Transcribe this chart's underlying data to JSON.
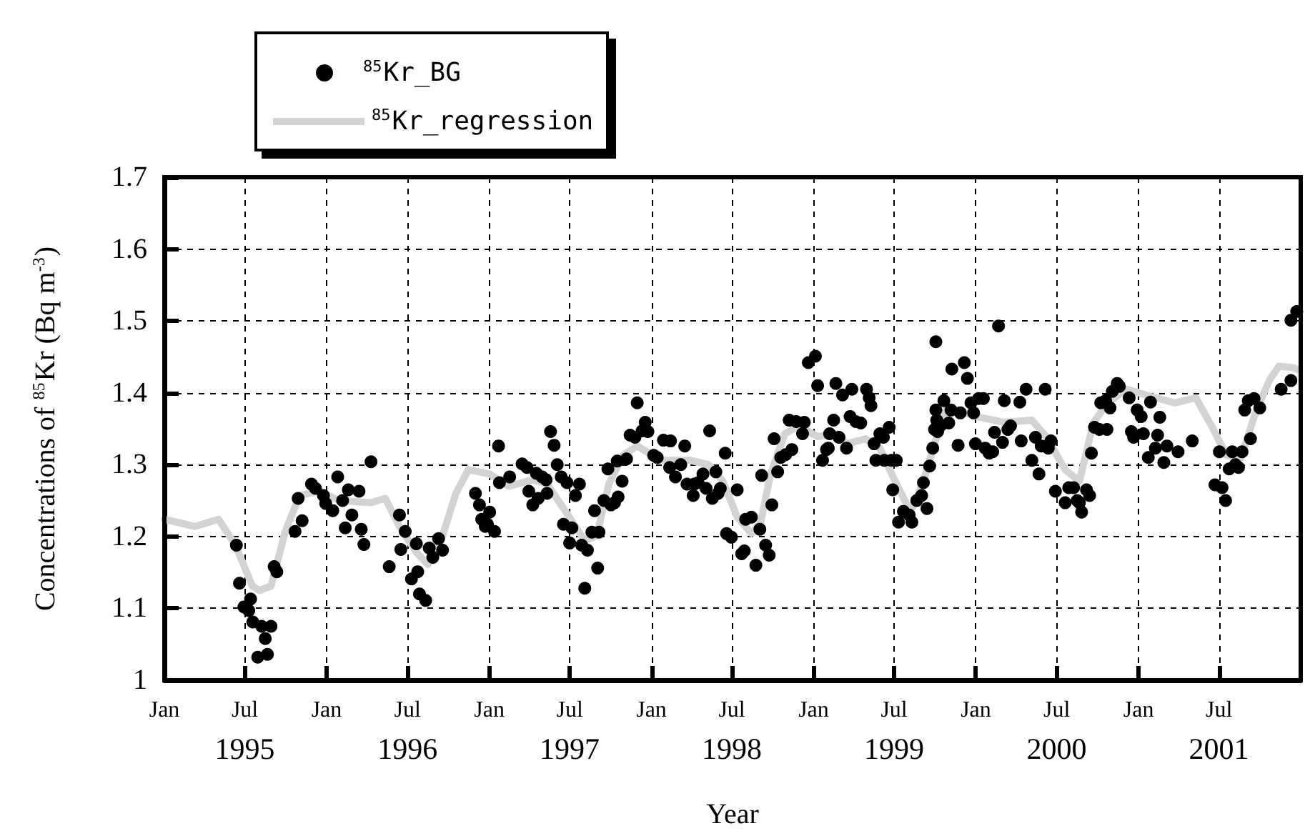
{
  "chart_data": {
    "type": "scatter",
    "xlabel": "Year",
    "ylabel": "Concentrations of $^{85}$Kr (Bq m$^{-3}$)",
    "xlim": [
      "1995-01-01",
      "2002-01-01"
    ],
    "xticks": [
      {
        "value": "1995-01-01",
        "label": "Jan"
      },
      {
        "value": "1995-07-01",
        "label": "Jul\n1995"
      },
      {
        "value": "1996-01-01",
        "label": "Jan"
      },
      {
        "value": "1996-07-01",
        "label": "Jul\n1996"
      },
      {
        "value": "1997-01-01",
        "label": "Jan"
      },
      {
        "value": "1997-07-01",
        "label": "Jul\n1997"
      },
      {
        "value": "1998-01-01",
        "label": "Jan"
      },
      {
        "value": "1998-07-01",
        "label": "Jul\n1998"
      },
      {
        "value": "1999-01-01",
        "label": "Jan"
      },
      {
        "value": "1999-07-01",
        "label": "Jul\n1999"
      },
      {
        "value": "2000-01-01",
        "label": "Jan"
      },
      {
        "value": "2000-07-01",
        "label": "Jul\n2000"
      },
      {
        "value": "2001-01-01",
        "label": "Jan"
      },
      {
        "value": "2001-07-01",
        "label": "Jul\n2001"
      }
    ],
    "ylim": [
      1,
      1.7
    ],
    "yticks": [
      1,
      1.1,
      1.2,
      1.3,
      1.4,
      1.5,
      1.6,
      1.7
    ],
    "grid": true,
    "legend": "top left",
    "series": [
      {
        "name": "$^{85}$Kr_BG",
        "marker": "circle",
        "color": "#000000",
        "x": [
          "1995-06-12",
          "1995-06-19",
          "1995-06-29",
          "1995-07-10",
          "1995-07-14",
          "1995-07-19",
          "1995-08-08",
          "1995-08-29",
          "1995-08-16",
          "1995-07-30",
          "1995-08-21",
          "1995-09-05",
          "1995-09-11",
          "1995-10-22",
          "1995-11-07",
          "1995-10-29",
          "1995-11-28",
          "1995-12-07",
          "1995-12-25",
          "1995-12-30",
          "1996-01-15",
          "1996-01-26",
          "1996-02-06",
          "1996-02-19",
          "1996-03-14",
          "1996-02-27",
          "1996-02-12",
          "1996-03-19",
          "1996-03-25",
          "1996-04-10",
          "1996-06-13",
          "1996-06-26",
          "1996-06-16",
          "1996-05-21",
          "1996-07-21",
          "1996-07-10",
          "1996-07-24",
          "1996-07-28",
          "1996-08-11",
          "1996-08-19",
          "1996-08-27",
          "1996-09-09",
          "1996-09-18",
          "1996-12-01",
          "1996-12-10",
          "1996-12-15",
          "1996-12-23",
          "1997-01-02",
          "1996-12-28",
          "1997-01-13",
          "1997-01-24",
          "1997-01-22",
          "1997-02-16",
          "1997-03-16",
          "1997-03-27",
          "1997-03-31",
          "1997-04-09",
          "1997-04-17",
          "1997-04-21",
          "1997-04-30",
          "1997-05-09",
          "1997-05-11",
          "1997-05-19",
          "1997-05-27",
          "1997-06-03",
          "1997-06-12",
          "1997-06-25",
          "1997-07-14",
          "1997-07-23",
          "1997-06-17",
          "1997-07-06",
          "1997-07-01",
          "1997-07-28",
          "1997-08-10",
          "1997-08-04",
          "1997-09-02",
          "1997-08-20",
          "1997-08-26",
          "1997-09-05",
          "1997-09-16",
          "1997-09-25",
          "1997-10-02",
          "1997-10-10",
          "1997-10-18",
          "1997-10-16",
          "1997-10-27",
          "1997-11-06",
          "1997-11-14",
          "1997-11-25",
          "1997-11-30",
          "1997-12-11",
          "1997-12-18",
          "1997-12-24",
          "1998-01-06",
          "1998-01-14",
          "1998-01-28",
          "1998-02-13",
          "1998-02-11",
          "1998-02-24",
          "1998-03-08",
          "1998-03-17",
          "1998-03-22",
          "1998-04-05",
          "1998-04-07",
          "1998-04-16",
          "1998-04-27",
          "1998-05-04",
          "1998-05-12",
          "1998-05-18",
          "1998-05-26",
          "1998-05-31",
          "1998-06-05",
          "1998-06-16",
          "1998-07-13",
          "1998-06-19",
          "1998-06-30",
          "1998-07-23",
          "1998-07-29",
          "1998-08-01",
          "1998-08-14",
          "1998-08-24",
          "1998-09-02",
          "1998-09-15",
          "1998-09-23",
          "1998-09-06",
          "1998-09-29",
          "1998-10-04",
          "1998-10-12",
          "1998-10-19",
          "1998-10-30",
          "1998-11-13",
          "1998-11-07",
          "1998-11-23",
          "1998-12-11",
          "1998-12-07",
          "1999-01-21",
          "1999-01-30",
          "1999-02-06",
          "1999-02-15",
          "1999-02-27",
          "1998-12-20",
          "1999-01-05",
          "1999-01-10",
          "1999-02-03",
          "1999-02-20",
          "1999-03-07",
          "1999-03-16",
          "1999-03-24",
          "1999-03-28",
          "1999-04-06",
          "1999-04-17",
          "1999-04-30",
          "1999-05-06",
          "1999-05-10",
          "1999-05-17",
          "1999-05-21",
          "1999-05-30",
          "1999-06-07",
          "1999-06-09",
          "1999-06-20",
          "1999-06-25",
          "1999-07-06",
          "1999-06-28",
          "1999-07-11",
          "1999-07-22",
          "1999-08-04",
          "1999-08-10",
          "1999-08-21",
          "1999-09-01",
          "1999-09-05",
          "1999-09-13",
          "1999-09-19",
          "1999-09-26",
          "1999-09-30",
          "1999-10-03",
          "1999-10-05",
          "1999-10-07",
          "1999-10-13",
          "1999-10-21",
          "1999-11-01",
          "1999-11-06",
          "1999-11-08",
          "1999-10-03",
          "1999-11-22",
          "1999-11-27",
          "1999-12-06",
          "1999-12-13",
          "1999-12-21",
          "1999-12-27",
          "1999-12-31",
          "2000-01-07",
          "2000-01-18",
          "2000-01-22",
          "2000-01-31",
          "2000-02-08",
          "2000-02-12",
          "2000-02-21",
          "2000-03-01",
          "2000-03-05",
          "2000-03-13",
          "2000-03-19",
          "2000-04-09",
          "2000-04-12",
          "2000-04-23",
          "2000-05-06",
          "2000-05-14",
          "2000-05-22",
          "2000-05-27",
          "2000-06-05",
          "2000-06-12",
          "2000-06-18",
          "2000-06-28",
          "2000-07-20",
          "2000-07-28",
          "2000-08-08",
          "2000-08-16",
          "2000-08-26",
          "2000-08-21",
          "2000-09-06",
          "2000-09-13",
          "2000-09-17",
          "2000-09-24",
          "2000-10-05",
          "2000-10-22",
          "2000-10-08",
          "2000-10-19",
          "2000-10-29",
          "2000-11-03",
          "2000-11-14",
          "2000-11-19",
          "2000-12-11",
          "2000-12-16",
          "2000-12-21",
          "2000-12-29",
          "2001-01-07",
          "2001-01-12",
          "2001-01-23",
          "2001-01-28",
          "2001-02-08",
          "2001-02-13",
          "2001-02-18",
          "2001-02-27",
          "2001-03-06",
          "2001-03-31",
          "2001-05-02",
          "2001-06-22",
          "2001-07-02",
          "2001-07-08",
          "2001-07-16",
          "2001-07-24",
          "2001-07-31",
          "2001-08-07",
          "2001-08-14",
          "2001-08-22",
          "2001-08-28",
          "2001-09-05",
          "2001-09-10",
          "2001-09-18",
          "2001-10-01",
          "2001-11-18",
          "2001-12-10",
          "2001-12-10",
          "2001-12-23"
        ],
        "values": [
          1.188,
          1.135,
          1.102,
          1.097,
          1.113,
          1.081,
          1.075,
          1.075,
          1.058,
          1.032,
          1.036,
          1.158,
          1.151,
          1.207,
          1.222,
          1.253,
          1.273,
          1.267,
          1.257,
          1.246,
          1.236,
          1.283,
          1.25,
          1.265,
          1.263,
          1.23,
          1.212,
          1.21,
          1.189,
          1.304,
          1.23,
          1.207,
          1.182,
          1.158,
          1.19,
          1.141,
          1.151,
          1.12,
          1.111,
          1.184,
          1.171,
          1.197,
          1.181,
          1.26,
          1.244,
          1.224,
          1.214,
          1.234,
          1.217,
          1.207,
          1.275,
          1.326,
          1.283,
          1.301,
          1.296,
          1.263,
          1.244,
          1.288,
          1.253,
          1.283,
          1.279,
          1.26,
          1.346,
          1.327,
          1.3,
          1.283,
          1.275,
          1.257,
          1.273,
          1.217,
          1.212,
          1.191,
          1.188,
          1.181,
          1.128,
          1.156,
          1.206,
          1.236,
          1.206,
          1.25,
          1.294,
          1.244,
          1.247,
          1.255,
          1.305,
          1.277,
          1.308,
          1.341,
          1.338,
          1.386,
          1.347,
          1.359,
          1.346,
          1.313,
          1.31,
          1.334,
          1.333,
          1.296,
          1.283,
          1.3,
          1.326,
          1.273,
          1.257,
          1.273,
          1.275,
          1.287,
          1.267,
          1.347,
          1.253,
          1.29,
          1.26,
          1.267,
          1.316,
          1.265,
          1.204,
          1.199,
          1.176,
          1.18,
          1.224,
          1.227,
          1.16,
          1.21,
          1.188,
          1.174,
          1.285,
          1.244,
          1.336,
          1.29,
          1.31,
          1.314,
          1.321,
          1.362,
          1.36,
          1.359,
          1.343,
          1.306,
          1.321,
          1.343,
          1.362,
          1.338,
          1.442,
          1.451,
          1.41,
          1.323,
          1.413,
          1.397,
          1.323,
          1.367,
          1.405,
          1.36,
          1.358,
          1.405,
          1.393,
          1.382,
          1.329,
          1.306,
          1.343,
          1.338,
          1.306,
          1.352,
          1.306,
          1.306,
          1.265,
          1.22,
          1.235,
          1.23,
          1.22,
          1.25,
          1.257,
          1.275,
          1.239,
          1.298,
          1.323,
          1.349,
          1.376,
          1.362,
          1.346,
          1.354,
          1.389,
          1.358,
          1.376,
          1.433,
          1.471,
          1.327,
          1.372,
          1.442,
          1.42,
          1.386,
          1.372,
          1.329,
          1.392,
          1.392,
          1.323,
          1.316,
          1.318,
          1.345,
          1.493,
          1.331,
          1.389,
          1.349,
          1.354,
          1.387,
          1.333,
          1.405,
          1.306,
          1.338,
          1.287,
          1.326,
          1.405,
          1.323,
          1.333,
          1.263,
          1.247,
          1.268,
          1.268,
          1.25,
          1.234,
          1.247,
          1.265,
          1.257,
          1.316,
          1.352,
          1.349,
          1.349,
          1.386,
          1.389,
          1.379,
          1.402,
          1.413,
          1.409,
          1.393,
          1.346,
          1.338,
          1.376,
          1.367,
          1.343,
          1.31,
          1.387,
          1.323,
          1.341,
          1.366,
          1.303,
          1.326,
          1.318,
          1.333,
          1.272,
          1.318,
          1.268,
          1.25,
          1.294,
          1.318,
          1.3,
          1.296,
          1.318,
          1.376,
          1.389,
          1.336,
          1.392,
          1.379,
          1.405,
          1.417,
          1.501,
          1.513
        ]
      },
      {
        "name": "$^{85}$Kr_regression",
        "type": "line",
        "marker": "none",
        "line_style": "solid",
        "color": "#d3d3d3",
        "x": [
          "1995-01-01",
          "1995-03-11",
          "1995-05-03",
          "1995-06-10",
          "1995-07-18",
          "1995-08-03",
          "1995-08-29",
          "1995-09-30",
          "1995-11-01",
          "1995-12-14",
          "1996-01-31",
          "1996-04-10",
          "1996-05-12",
          "1996-06-13",
          "1996-07-21",
          "1996-08-16",
          "1996-09-18",
          "1996-10-18",
          "1996-11-15",
          "1997-01-02",
          "1997-02-14",
          "1997-04-09",
          "1997-05-11",
          "1997-06-23",
          "1997-08-04",
          "1997-08-31",
          "1997-09-27",
          "1997-10-29",
          "1997-11-30",
          "1998-01-22",
          "1998-03-28",
          "1998-05-10",
          "1998-06-11",
          "1998-07-13",
          "1998-08-14",
          "1998-09-04",
          "1998-09-26",
          "1998-10-28",
          "1998-11-29",
          "1999-01-10",
          "1999-02-22",
          "1999-03-16",
          "1999-04-28",
          "1999-05-30",
          "1999-07-01",
          "1999-08-07",
          "1999-09-03",
          "1999-10-05",
          "1999-10-26",
          "1999-12-08",
          "2000-01-09",
          "2000-03-03",
          "2000-05-06",
          "2000-06-07",
          "2000-07-20",
          "2000-08-21",
          "2000-09-22",
          "2000-10-24",
          "2000-12-06",
          "2001-01-28",
          "2001-03-23",
          "2001-05-10",
          "2001-06-16",
          "2001-07-18",
          "2001-08-20",
          "2001-09-21",
          "2001-10-23",
          "2001-11-13",
          "2001-12-15",
          "2001-12-26"
        ],
        "values": [
          1.224,
          1.214,
          1.224,
          1.188,
          1.131,
          1.125,
          1.131,
          1.207,
          1.257,
          1.263,
          1.25,
          1.247,
          1.253,
          1.214,
          1.178,
          1.161,
          1.201,
          1.26,
          1.293,
          1.287,
          1.27,
          1.279,
          1.273,
          1.234,
          1.194,
          1.201,
          1.273,
          1.313,
          1.326,
          1.306,
          1.306,
          1.3,
          1.277,
          1.227,
          1.204,
          1.22,
          1.287,
          1.343,
          1.354,
          1.339,
          1.343,
          1.329,
          1.336,
          1.323,
          1.28,
          1.234,
          1.273,
          1.339,
          1.379,
          1.372,
          1.366,
          1.359,
          1.362,
          1.339,
          1.293,
          1.277,
          1.359,
          1.386,
          1.405,
          1.395,
          1.386,
          1.393,
          1.352,
          1.313,
          1.31,
          1.372,
          1.418,
          1.437,
          1.435,
          1.432
        ]
      }
    ]
  }
}
